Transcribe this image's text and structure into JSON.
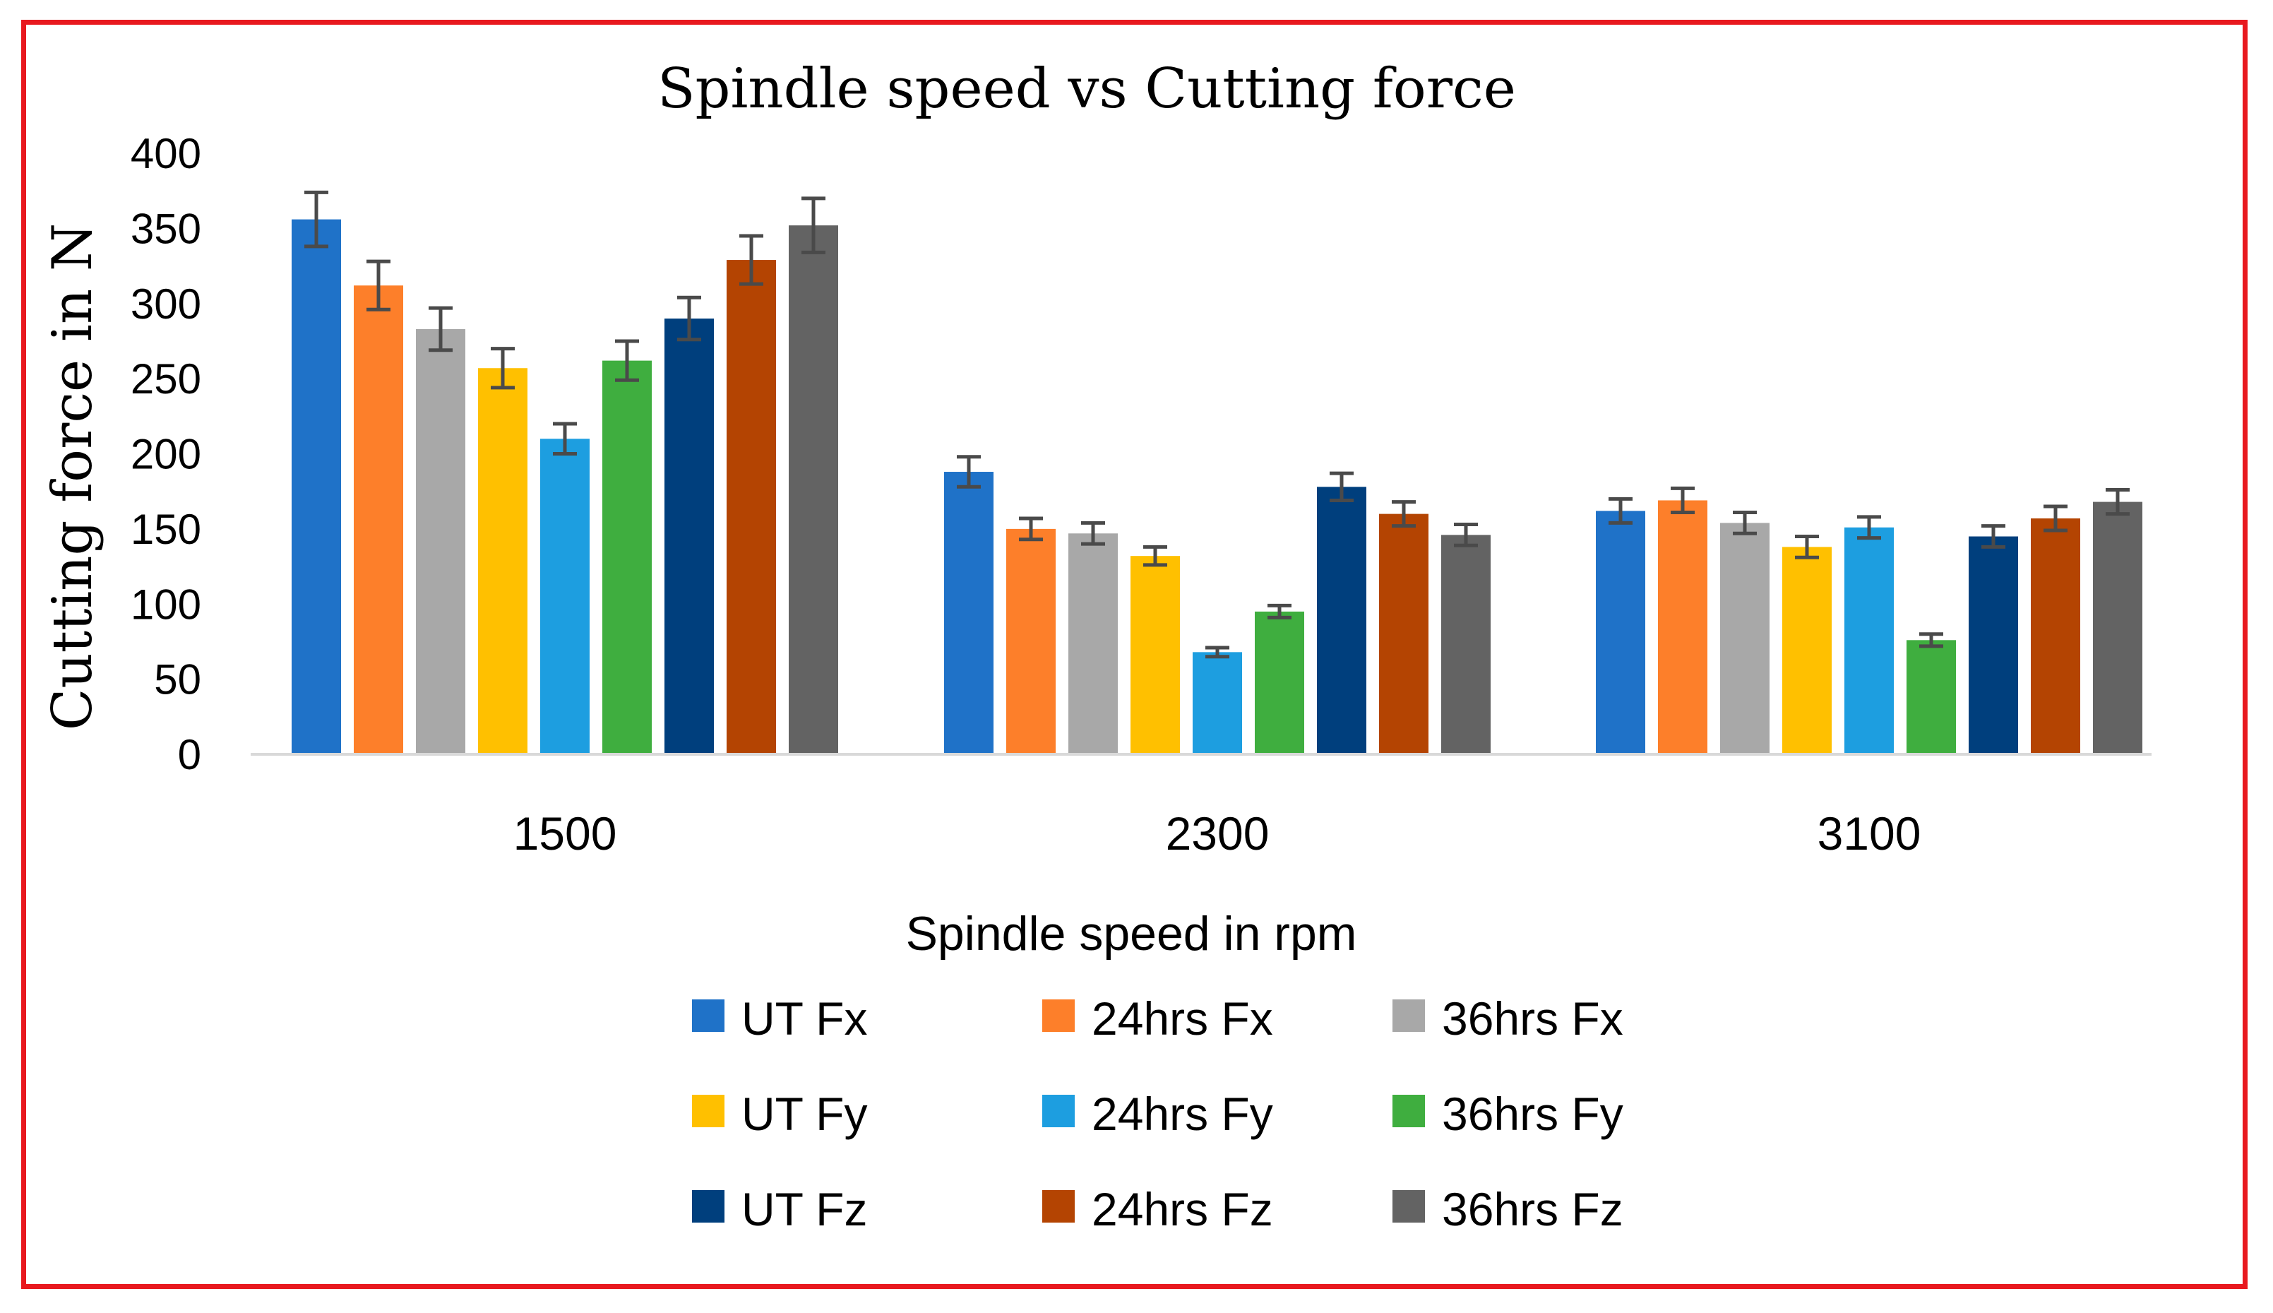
{
  "chart_data": {
    "type": "bar",
    "title": "Spindle speed vs Cutting force",
    "xlabel": "Spindle speed in rpm",
    "ylabel": "Cutting force in N",
    "ylim": [
      0,
      400
    ],
    "yticks": [
      0,
      50,
      100,
      150,
      200,
      250,
      300,
      350,
      400
    ],
    "ytick_labels": [
      "0",
      "50",
      "100",
      "150",
      "200",
      "250",
      "300",
      "350",
      "400"
    ],
    "grid": false,
    "legend_position": "bottom",
    "categories": [
      "1500",
      "2300",
      "3100"
    ],
    "series": [
      {
        "name": "UT Fx",
        "color": "#1f72c8",
        "values": [
          356,
          188,
          162
        ],
        "errors": [
          18,
          10,
          8
        ]
      },
      {
        "name": "24hrs Fx",
        "color": "#fd7f2a",
        "values": [
          312,
          150,
          169
        ],
        "errors": [
          16,
          7,
          8
        ]
      },
      {
        "name": "36hrs Fx",
        "color": "#a8a8a8",
        "values": [
          283,
          147,
          154
        ],
        "errors": [
          14,
          7,
          7
        ]
      },
      {
        "name": "UT Fy",
        "color": "#ffc000",
        "values": [
          257,
          132,
          138
        ],
        "errors": [
          13,
          6,
          7
        ]
      },
      {
        "name": "24hrs Fy",
        "color": "#1d9ee0",
        "values": [
          210,
          68,
          151
        ],
        "errors": [
          10,
          3,
          7
        ]
      },
      {
        "name": "36hrs Fy",
        "color": "#3fae3f",
        "values": [
          262,
          95,
          76
        ],
        "errors": [
          13,
          4,
          4
        ]
      },
      {
        "name": "UT Fz",
        "color": "#003f7d",
        "values": [
          290,
          178,
          145
        ],
        "errors": [
          14,
          9,
          7
        ]
      },
      {
        "name": "24hrs Fz",
        "color": "#b44402",
        "values": [
          329,
          160,
          157
        ],
        "errors": [
          16,
          8,
          8
        ]
      },
      {
        "name": "36hrs Fz",
        "color": "#636363",
        "values": [
          352,
          146,
          168
        ],
        "errors": [
          18,
          7,
          8
        ]
      }
    ]
  },
  "colors": {
    "frame_border": "#e8191f",
    "axis_line": "#d9d9d9",
    "error_bar": "#4a4a4a"
  }
}
